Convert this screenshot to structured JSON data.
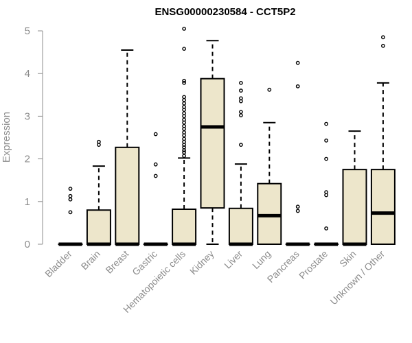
{
  "chart_data": {
    "type": "box",
    "title": "ENSG00000230584 - CCT5P2",
    "xlabel": "",
    "ylabel": "Expression",
    "ylim": [
      0,
      5
    ],
    "yticks": [
      0,
      1,
      2,
      3,
      4,
      5
    ],
    "grid": false,
    "legend": "none",
    "box_fill": "#ede6cb",
    "box_stroke": "#000000",
    "categories": [
      "Bladder",
      "Brain",
      "Breast",
      "Gastric",
      "Hematopoietic cells",
      "Kidney",
      "Liver",
      "Lung",
      "Pancreas",
      "Prostate",
      "Skin",
      "Unknown / Other"
    ],
    "boxes": [
      {
        "category": "Bladder",
        "q1": 0,
        "median": 0,
        "q3": 0,
        "whisker_low": 0,
        "whisker_high": 0,
        "outliers": [
          0.75,
          1.05,
          1.13,
          1.3
        ]
      },
      {
        "category": "Brain",
        "q1": 0,
        "median": 0,
        "q3": 0.8,
        "whisker_low": 0,
        "whisker_high": 1.83,
        "outliers": [
          2.33,
          2.4
        ]
      },
      {
        "category": "Breast",
        "q1": 0,
        "median": 0,
        "q3": 2.27,
        "whisker_low": 0,
        "whisker_high": 4.55,
        "outliers": []
      },
      {
        "category": "Gastric",
        "q1": 0,
        "median": 0,
        "q3": 0,
        "whisker_low": 0,
        "whisker_high": 0,
        "outliers": [
          1.6,
          1.87,
          2.58
        ]
      },
      {
        "category": "Hematopoietic cells",
        "q1": 0,
        "median": 0,
        "q3": 0.82,
        "whisker_low": 0,
        "whisker_high": 2.02,
        "outliers": [
          2.07,
          2.15,
          2.2,
          2.27,
          2.33,
          2.4,
          2.47,
          2.55,
          2.62,
          2.7,
          2.77,
          2.85,
          2.92,
          3.0,
          3.07,
          3.15,
          3.22,
          3.3,
          3.38,
          3.45,
          3.78,
          3.83,
          4.58,
          5.05
        ]
      },
      {
        "category": "Kidney",
        "q1": 0.85,
        "median": 2.75,
        "q3": 3.88,
        "whisker_low": 0,
        "whisker_high": 4.77,
        "outliers": []
      },
      {
        "category": "Liver",
        "q1": 0,
        "median": 0,
        "q3": 0.84,
        "whisker_low": 0,
        "whisker_high": 1.88,
        "outliers": [
          2.33,
          3.02,
          3.1,
          3.35,
          3.42,
          3.6,
          3.78
        ]
      },
      {
        "category": "Lung",
        "q1": 0,
        "median": 0.67,
        "q3": 1.42,
        "whisker_low": 0,
        "whisker_high": 2.85,
        "outliers": [
          3.62
        ]
      },
      {
        "category": "Pancreas",
        "q1": 0,
        "median": 0,
        "q3": 0,
        "whisker_low": 0,
        "whisker_high": 0,
        "outliers": [
          0.78,
          0.88,
          3.7,
          4.25
        ]
      },
      {
        "category": "Prostate",
        "q1": 0,
        "median": 0,
        "q3": 0,
        "whisker_low": 0,
        "whisker_high": 0,
        "outliers": [
          0.37,
          1.15,
          1.22,
          2.0,
          2.43,
          2.82
        ]
      },
      {
        "category": "Skin",
        "q1": 0,
        "median": 0,
        "q3": 1.75,
        "whisker_low": 0,
        "whisker_high": 2.65,
        "outliers": []
      },
      {
        "category": "Unknown / Other",
        "q1": 0,
        "median": 0.73,
        "q3": 1.75,
        "whisker_low": 0,
        "whisker_high": 3.78,
        "outliers": [
          4.65,
          4.85
        ]
      }
    ]
  }
}
